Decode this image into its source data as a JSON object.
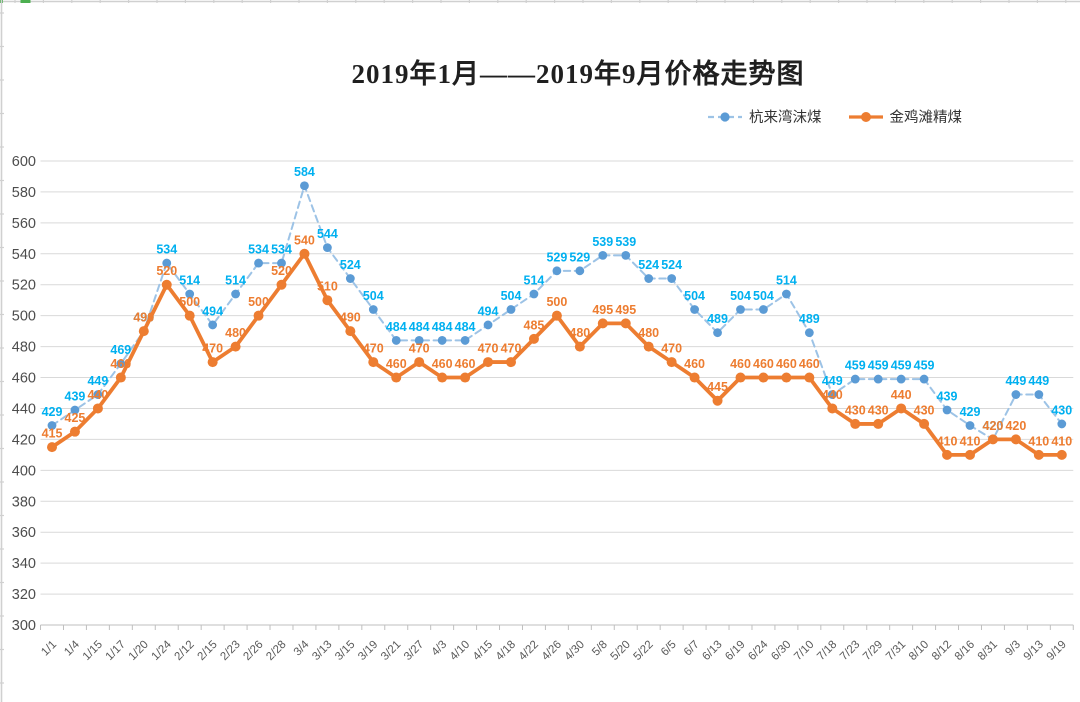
{
  "title_text": "2019年1月——2019年9月价格走势图",
  "colors": {
    "background": "#FFFFFF",
    "gridline": "#D9D9D9",
    "axis_line": "#BFBFBF",
    "axis_text": "#595959",
    "y_axis_text": "#4D4D4D",
    "sheet_edge": "#D0D0D0",
    "accent_green": "#4CAF50",
    "title_text_color": "#1F1F1F"
  },
  "chart_data": {
    "type": "line",
    "title": "2019年1月——2019年9月价格走势图",
    "categories": [
      "1/1",
      "1/4",
      "1/15",
      "1/17",
      "1/20",
      "1/24",
      "2/12",
      "2/15",
      "2/23",
      "2/26",
      "2/28",
      "3/4",
      "3/13",
      "3/15",
      "3/19",
      "3/21",
      "3/27",
      "4/3",
      "4/10",
      "4/15",
      "4/18",
      "4/22",
      "4/26",
      "4/30",
      "5/8",
      "5/20",
      "5/22",
      "6/5",
      "6/7",
      "6/13",
      "6/19",
      "6/24",
      "6/30",
      "7/10",
      "7/18",
      "7/23",
      "7/29",
      "7/31",
      "8/10",
      "8/12",
      "8/16",
      "8/31",
      "9/3",
      "9/13",
      "9/19"
    ],
    "series": [
      {
        "name": "杭来湾沫煤",
        "values": [
          429,
          439,
          449,
          469,
          490,
          534,
          514,
          494,
          514,
          534,
          534,
          584,
          544,
          524,
          504,
          484,
          484,
          484,
          484,
          494,
          504,
          514,
          529,
          529,
          539,
          539,
          524,
          524,
          504,
          489,
          504,
          504,
          514,
          489,
          449,
          459,
          459,
          459,
          459,
          439,
          429,
          420,
          449,
          449,
          430
        ],
        "marker_color": "#5B9BD5",
        "line_color": "#9DC3E6",
        "label_color": "#00B0F0",
        "line_style": "dashed"
      },
      {
        "name": "金鸡滩精煤",
        "values": [
          415,
          425,
          440,
          460,
          490,
          520,
          500,
          470,
          480,
          500,
          520,
          540,
          510,
          490,
          470,
          460,
          470,
          460,
          460,
          470,
          470,
          485,
          500,
          480,
          495,
          495,
          480,
          470,
          460,
          445,
          460,
          460,
          460,
          460,
          440,
          430,
          430,
          440,
          430,
          410,
          410,
          420,
          420,
          410,
          410
        ],
        "marker_color": "#ED7D31",
        "line_color": "#ED7D31",
        "label_color": "#ED7D31",
        "line_style": "solid"
      }
    ],
    "ylim": [
      300,
      600
    ],
    "ytick_step": 20,
    "y_tick_labels": [
      "600",
      "580",
      "560",
      "540",
      "520",
      "500",
      "480",
      "460",
      "440",
      "420",
      "400",
      "380",
      "360",
      "340",
      "320",
      "300"
    ],
    "grid": true,
    "data_labels": true,
    "legend_position": "top-right",
    "xlabel": "",
    "ylabel": ""
  }
}
